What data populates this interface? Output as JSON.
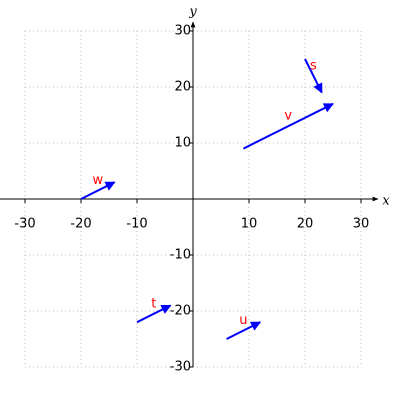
{
  "chart_data": {
    "type": "vector",
    "x_label": "x",
    "y_label": "y",
    "xlim": [
      -30,
      30
    ],
    "ylim": [
      -30,
      30
    ],
    "xticks": [
      -30,
      -20,
      -10,
      10,
      20,
      30
    ],
    "yticks": [
      -30,
      -20,
      -10,
      10,
      20,
      30
    ],
    "grid": true,
    "arrow_color": "#0000ff",
    "label_color": "#ff0000",
    "series": [
      {
        "name": "s",
        "start": [
          20,
          25
        ],
        "end": [
          23,
          19
        ]
      },
      {
        "name": "v",
        "start": [
          9,
          9
        ],
        "end": [
          25,
          17
        ]
      },
      {
        "name": "w",
        "start": [
          -20,
          0
        ],
        "end": [
          -14,
          3
        ]
      },
      {
        "name": "t",
        "start": [
          -10,
          -22
        ],
        "end": [
          -4,
          -19
        ]
      },
      {
        "name": "u",
        "start": [
          6,
          -25
        ],
        "end": [
          12,
          -22
        ]
      }
    ]
  }
}
